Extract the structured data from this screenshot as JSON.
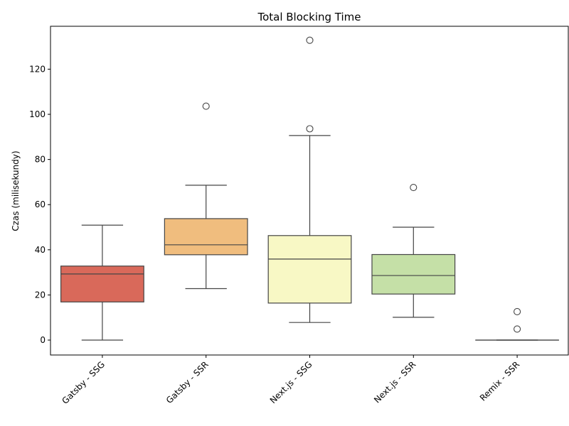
{
  "chart_data": {
    "type": "box",
    "title": "Total Blocking Time",
    "xlabel": "",
    "ylabel": "Czas (milisekundy)",
    "ylim": [
      -6.6,
      139
    ],
    "yticks": [
      0,
      20,
      40,
      60,
      80,
      100,
      120
    ],
    "grid": false,
    "categories": [
      "Gatsby - SSG",
      "Gatsby - SSR",
      "Next.js - SSG",
      "Next.js - SSR",
      "Remix - SSR"
    ],
    "colors": [
      "#d9695a",
      "#f0bd7e",
      "#f8f8c5",
      "#c5e0a7",
      "#5e9bd4"
    ],
    "boxes": [
      {
        "whisker_low": 0,
        "q1": 16.9,
        "median": 29.3,
        "q3": 32.8,
        "whisker_high": 50.9,
        "outliers": []
      },
      {
        "whisker_low": 22.8,
        "q1": 37.8,
        "median": 42.2,
        "q3": 53.8,
        "whisker_high": 68.6,
        "outliers": [
          103.6
        ]
      },
      {
        "whisker_low": 7.8,
        "q1": 16.4,
        "median": 35.9,
        "q3": 46.3,
        "whisker_high": 90.6,
        "outliers": [
          93.6,
          132.8
        ]
      },
      {
        "whisker_low": 10.1,
        "q1": 20.4,
        "median": 28.6,
        "q3": 37.9,
        "whisker_high": 50.0,
        "outliers": [
          67.6
        ]
      },
      {
        "whisker_low": 0,
        "q1": 0,
        "median": 0,
        "q3": 0,
        "whisker_high": 0,
        "outliers": [
          4.9,
          12.6
        ]
      }
    ]
  }
}
